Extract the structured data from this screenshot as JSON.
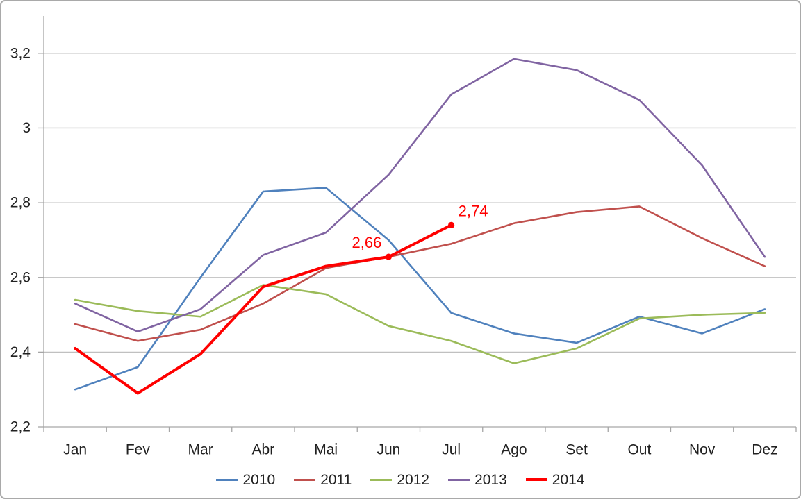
{
  "chart_data": {
    "type": "line",
    "title": "",
    "xlabel": "",
    "ylabel": "",
    "categories": [
      "Jan",
      "Fev",
      "Mar",
      "Abr",
      "Mai",
      "Jun",
      "Jul",
      "Ago",
      "Set",
      "Out",
      "Nov",
      "Dez"
    ],
    "series": [
      {
        "name": "2010",
        "color": "#4F81BD",
        "line_width": 2.6,
        "values": [
          2.3,
          2.36,
          2.6,
          2.83,
          2.84,
          2.7,
          2.505,
          2.45,
          2.425,
          2.495,
          2.45,
          2.515
        ]
      },
      {
        "name": "2011",
        "color": "#C0504D",
        "line_width": 2.6,
        "values": [
          2.475,
          2.43,
          2.46,
          2.53,
          2.625,
          2.655,
          2.69,
          2.745,
          2.775,
          2.79,
          2.705,
          2.63
        ]
      },
      {
        "name": "2012",
        "color": "#9BBB59",
        "line_width": 2.6,
        "values": [
          2.54,
          2.51,
          2.495,
          2.58,
          2.555,
          2.47,
          2.43,
          2.37,
          2.41,
          2.49,
          2.5,
          2.505
        ]
      },
      {
        "name": "2013",
        "color": "#8064A2",
        "line_width": 2.6,
        "values": [
          2.53,
          2.455,
          2.515,
          2.66,
          2.72,
          2.875,
          3.09,
          3.185,
          3.155,
          3.075,
          2.9,
          2.655
        ]
      },
      {
        "name": "2014",
        "color": "#FF0000",
        "line_width": 4,
        "values": [
          2.41,
          2.29,
          2.395,
          2.575,
          2.63,
          2.655,
          2.74,
          null,
          null,
          null,
          null,
          null
        ],
        "marker_indices": [
          5,
          6
        ]
      }
    ],
    "annotations": [
      {
        "series": "2014",
        "category_index": 5,
        "text": "2,66",
        "side": "left",
        "color": "#FF0000"
      },
      {
        "series": "2014",
        "category_index": 6,
        "text": "2,74",
        "side": "right",
        "color": "#FF0000"
      }
    ],
    "y_axis": {
      "min": 2.2,
      "max": 3.3,
      "tick_values": [
        2.2,
        2.4,
        2.6,
        2.8,
        3.0,
        3.2
      ],
      "tick_labels": [
        "2,2",
        "2,4",
        "2,6",
        "2,8",
        "3",
        "3,2"
      ]
    },
    "grid": true,
    "legend_position": "bottom",
    "legend": {
      "entries": [
        "2010",
        "2011",
        "2012",
        "2013",
        "2014"
      ]
    },
    "style": {
      "gridline_color": "#C0C0C0",
      "axis_color": "#A6A6A6",
      "label_color": "#212121",
      "axis_label_font_size": 21,
      "annotation_font_size": 22
    }
  }
}
